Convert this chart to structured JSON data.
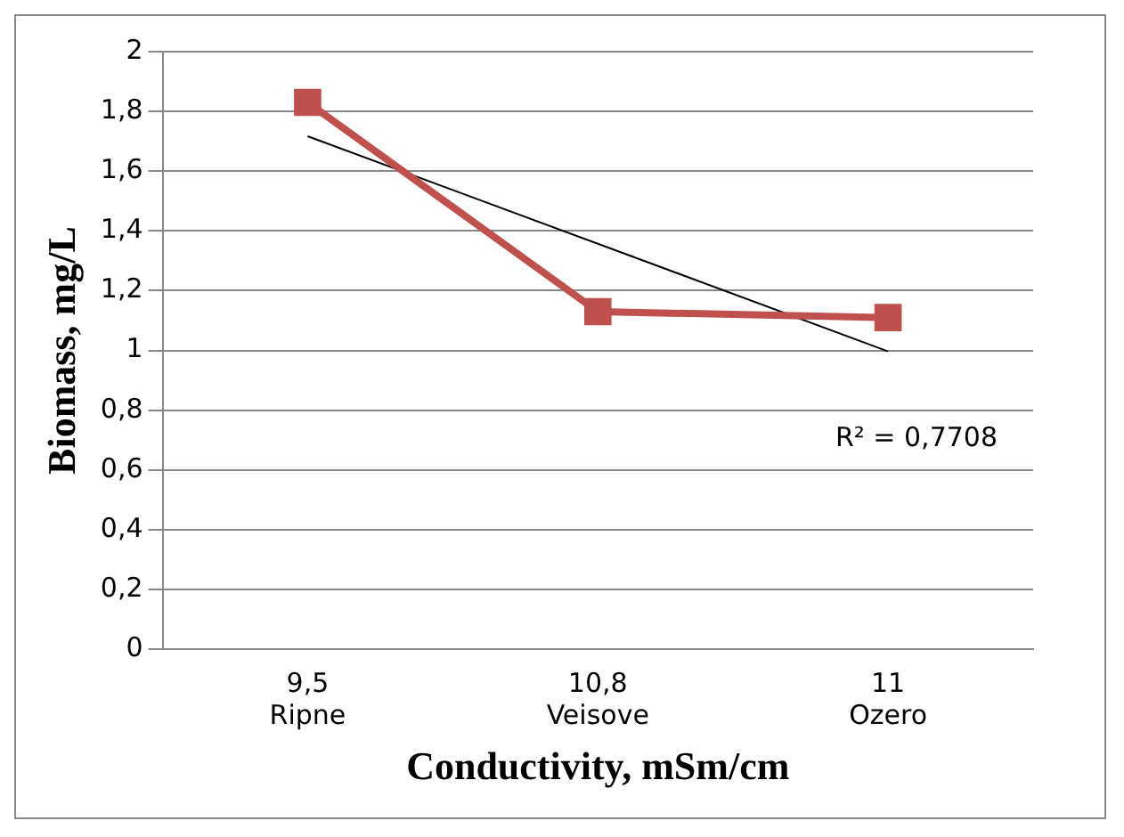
{
  "chart_data": {
    "type": "line",
    "xlabel": "Conductivity, mSm/cm",
    "ylabel": "Biomass, mg/L",
    "categories": [
      "9,5\nRipne",
      "10,8\nVeisove",
      "11\nOzero"
    ],
    "series": [
      {
        "color": "#c0504d",
        "values": [
          1.83,
          1.13,
          1.11
        ],
        "marker": "square"
      },
      {
        "color": "#000000",
        "values": [
          1.717,
          1.357,
          0.997
        ],
        "marker": "none"
      }
    ],
    "ylim": [
      0,
      2
    ],
    "yticks": [
      0,
      {
        "value": 0.2,
        "label": "0,2"
      },
      {
        "value": 0.4,
        "label": "0,4"
      },
      {
        "value": 0.6,
        "label": "0,6"
      },
      {
        "value": 0.8,
        "label": "0,8"
      },
      1,
      {
        "value": 1.2,
        "label": "1,2"
      },
      {
        "value": 1.4,
        "label": "1,4"
      },
      {
        "value": 1.6,
        "label": "1,6"
      },
      {
        "value": 1.8,
        "label": "1,8"
      },
      2
    ],
    "grid": "y",
    "annotations": [
      "R² = 0,7708"
    ]
  }
}
